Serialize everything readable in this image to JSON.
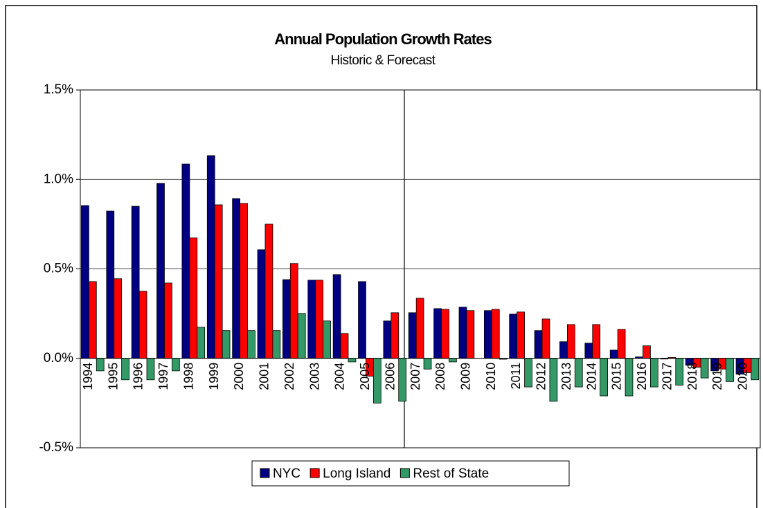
{
  "chart_data": {
    "type": "bar",
    "title": "Annual Population Growth Rates",
    "subtitle": "Historic & Forecast",
    "categories": [
      "1994",
      "1995",
      "1996",
      "1997",
      "1998",
      "1999",
      "2000",
      "2001",
      "2002",
      "2003",
      "2004",
      "2005",
      "2006",
      "2007",
      "2008",
      "2009",
      "2010",
      "2011",
      "2012",
      "2013",
      "2014",
      "2015",
      "2016",
      "2017",
      "2018",
      "2019",
      "2020"
    ],
    "series": [
      {
        "name": "NYC",
        "color": "#000080",
        "values": [
          0.854,
          0.823,
          0.85,
          0.978,
          1.086,
          1.133,
          0.893,
          0.607,
          0.44,
          0.437,
          0.468,
          0.429,
          0.209,
          0.255,
          0.278,
          0.286,
          0.267,
          0.247,
          0.155,
          0.093,
          0.085,
          0.046,
          0.008,
          -0.004,
          -0.039,
          -0.07,
          -0.089
        ]
      },
      {
        "name": "Long Island",
        "color": "#ff0000",
        "values": [
          0.429,
          0.445,
          0.375,
          0.421,
          0.673,
          0.858,
          0.866,
          0.75,
          0.53,
          0.437,
          0.139,
          -0.1,
          0.255,
          0.336,
          0.274,
          0.267,
          0.274,
          0.259,
          0.22,
          0.189,
          0.189,
          0.162,
          0.07,
          0.005,
          -0.05,
          -0.06,
          -0.08
        ]
      },
      {
        "name": "Rest of State",
        "color": "#339966",
        "values": [
          -0.07,
          -0.12,
          -0.12,
          -0.07,
          0.174,
          0.155,
          0.155,
          0.155,
          0.251,
          0.209,
          -0.02,
          -0.25,
          -0.24,
          -0.06,
          -0.02,
          0,
          -0.005,
          -0.16,
          -0.24,
          -0.16,
          -0.21,
          -0.21,
          -0.16,
          -0.15,
          -0.11,
          -0.13,
          -0.12
        ]
      }
    ],
    "ylim": [
      -0.5,
      1.5
    ],
    "yticks": [
      {
        "value": -0.5,
        "label": "-0.5%"
      },
      {
        "value": 0,
        "label": "0.0%"
      },
      {
        "value": 0.5,
        "label": "0.5%"
      },
      {
        "value": 1,
        "label": "1.0%"
      },
      {
        "value": 1.5,
        "label": "1.5%"
      }
    ],
    "grid": true,
    "legend": "bottom"
  }
}
